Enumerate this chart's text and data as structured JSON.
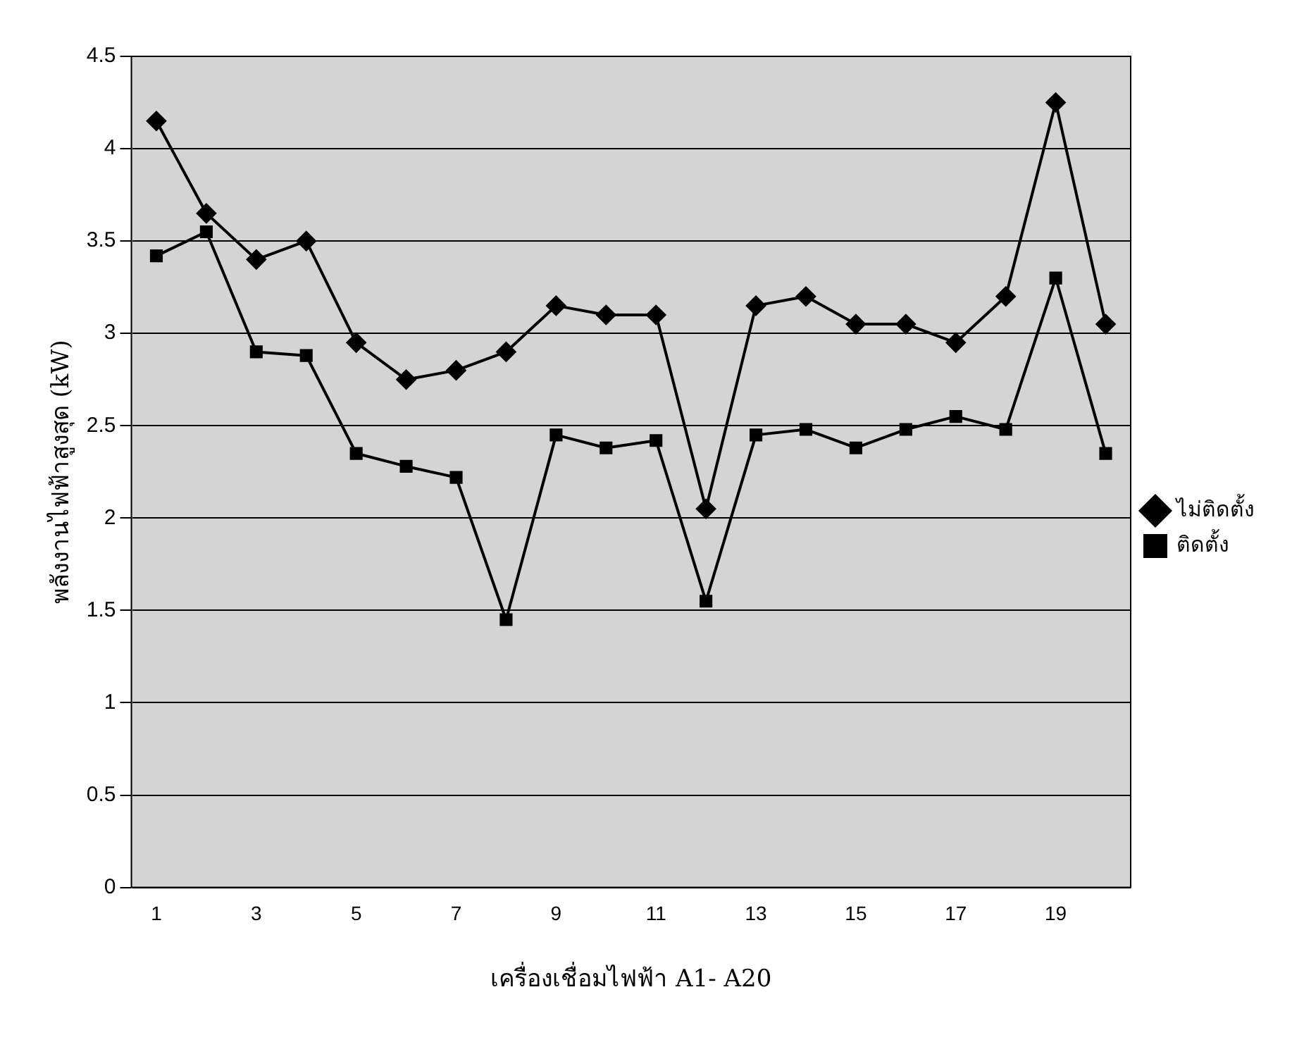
{
  "chart_data": {
    "type": "line",
    "xlabel": "เครื่องเชื่อมไฟฟ้า A1- A20",
    "ylabel": "พลังงานไฟฟ้าสูงสุด (kW)",
    "x": [
      1,
      2,
      3,
      4,
      5,
      6,
      7,
      8,
      9,
      10,
      11,
      12,
      13,
      14,
      15,
      16,
      17,
      18,
      19,
      20
    ],
    "xlim": [
      0.5,
      20.5
    ],
    "xticks": [
      1,
      3,
      5,
      7,
      9,
      11,
      13,
      15,
      17,
      19
    ],
    "series": [
      {
        "name": "ไม่ติดตั้ง",
        "color": "#000000",
        "marker": "diamond",
        "values": [
          4.15,
          3.65,
          3.4,
          3.5,
          2.95,
          2.75,
          2.8,
          2.9,
          3.15,
          3.1,
          3.1,
          2.05,
          3.15,
          3.2,
          3.05,
          3.05,
          2.95,
          3.2,
          4.25,
          3.05
        ]
      },
      {
        "name": "ติดตั้ง",
        "color": "#000000",
        "marker": "square",
        "values": [
          3.42,
          3.55,
          2.9,
          2.88,
          2.35,
          2.28,
          2.22,
          1.45,
          2.45,
          2.38,
          2.42,
          1.55,
          2.45,
          2.48,
          2.38,
          2.48,
          2.55,
          2.48,
          3.3,
          2.35
        ]
      }
    ],
    "ylim": [
      0,
      4.5
    ],
    "yticks": [
      0,
      0.5,
      1,
      1.5,
      2,
      2.5,
      3,
      3.5,
      4,
      4.5
    ],
    "grid": "y",
    "legend": "right",
    "line_style": "solid"
  }
}
